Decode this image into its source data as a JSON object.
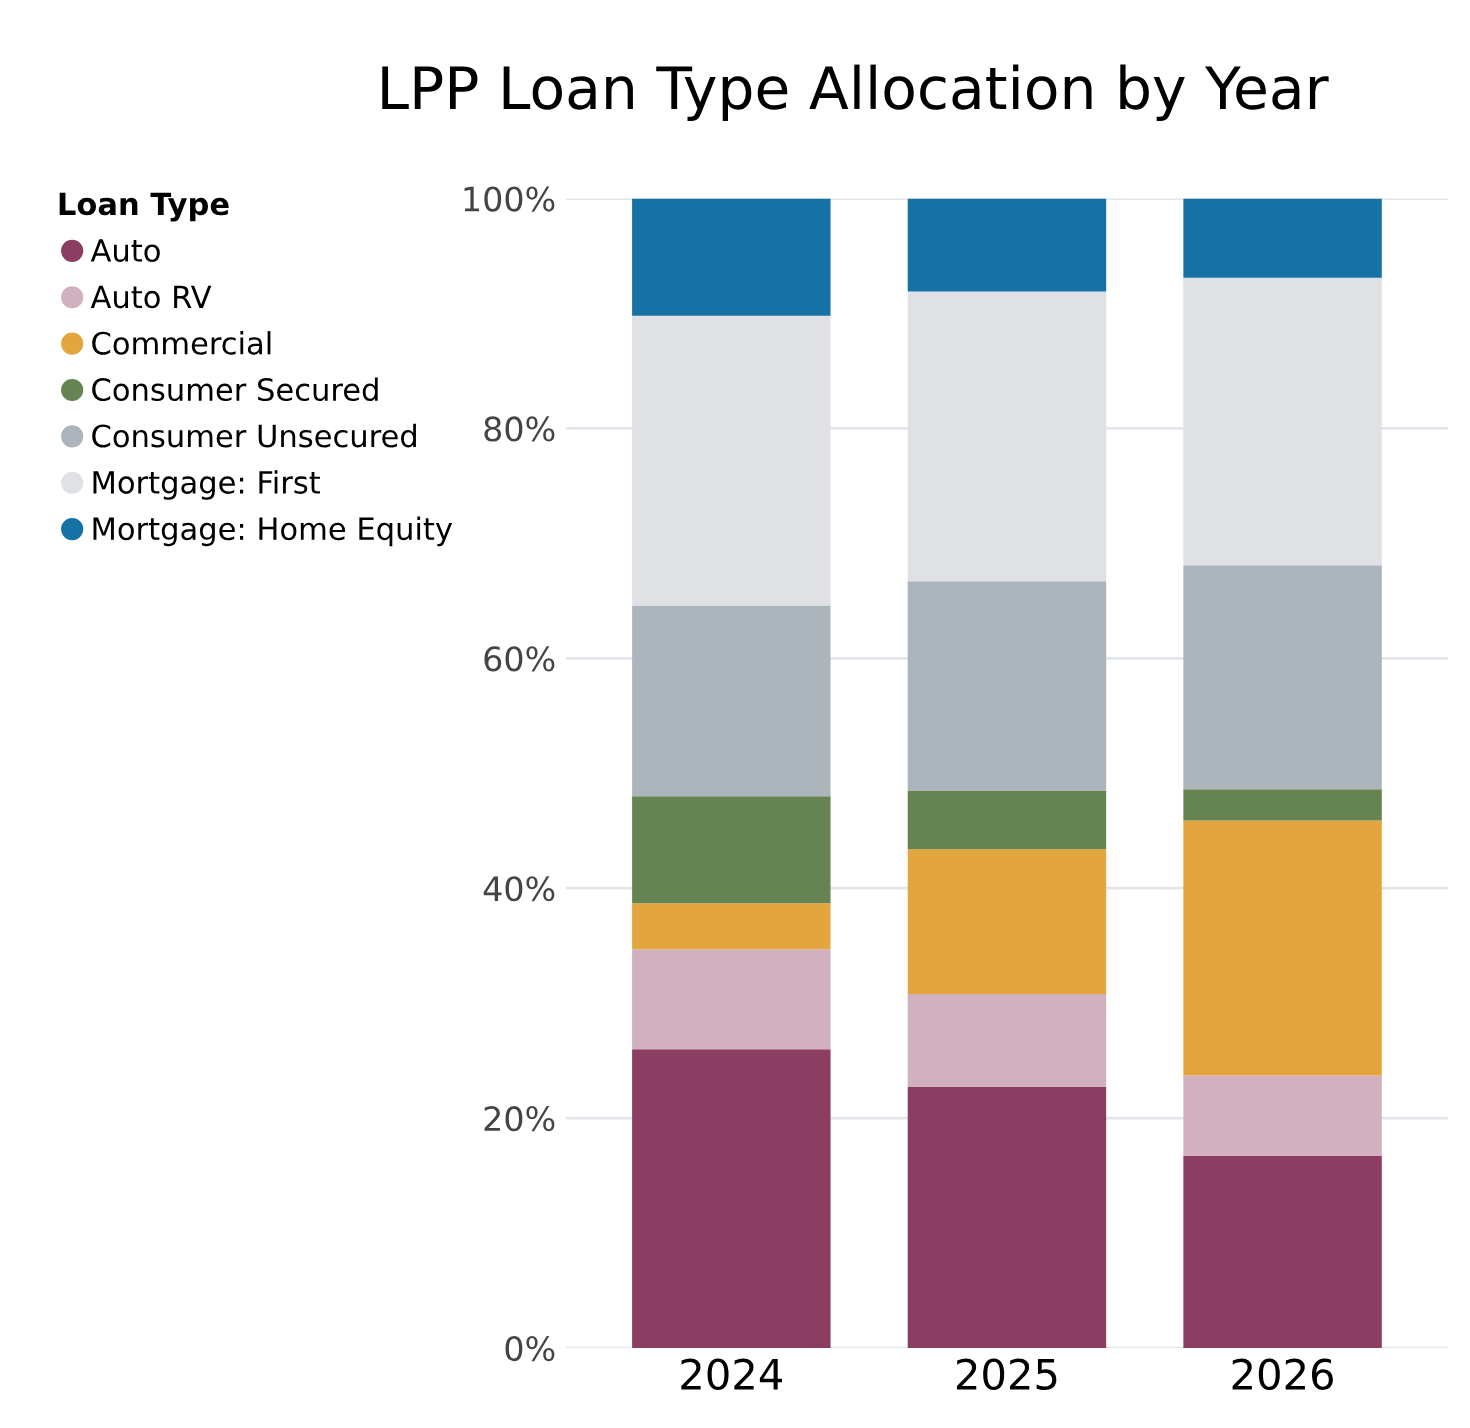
{
  "chart_data": {
    "type": "bar",
    "stacked": true,
    "title": "LPP Loan Type Allocation by Year",
    "legend_title": "Loan Type",
    "categories": [
      "2024",
      "2025",
      "2026"
    ],
    "series": [
      {
        "name": "Auto",
        "color": "#8b3e62",
        "values": [
          26.0,
          22.7,
          16.7
        ]
      },
      {
        "name": "Auto RV",
        "color": "#d1b1bf",
        "values": [
          8.7,
          8.1,
          7.0
        ]
      },
      {
        "name": "Commercial",
        "color": "#e3a63e",
        "values": [
          4.0,
          12.6,
          22.2
        ]
      },
      {
        "name": "Consumer Secured",
        "color": "#658452",
        "values": [
          9.3,
          5.1,
          2.7
        ]
      },
      {
        "name": "Consumer Unsecured",
        "color": "#acb4bc",
        "values": [
          16.6,
          18.2,
          19.5
        ]
      },
      {
        "name": "Mortgage: First",
        "color": "#dfe1e5",
        "values": [
          25.2,
          25.2,
          25.0
        ]
      },
      {
        "name": "Mortgage: Home Equity",
        "color": "#1672a5",
        "values": [
          10.2,
          8.1,
          6.9
        ]
      }
    ],
    "ylim": [
      0,
      100
    ],
    "yticks": [
      {
        "value": 0,
        "label": "0%"
      },
      {
        "value": 20,
        "label": "20%"
      },
      {
        "value": 40,
        "label": "40%"
      },
      {
        "value": 60,
        "label": "60%"
      },
      {
        "value": 80,
        "label": "80%"
      },
      {
        "value": 100,
        "label": "100%"
      }
    ],
    "grid": "y",
    "legend": "top left",
    "marker": "circle"
  }
}
